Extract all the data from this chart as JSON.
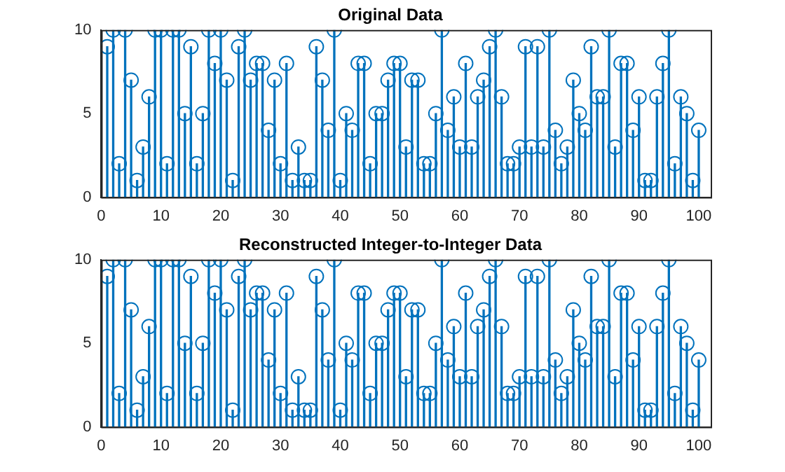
{
  "chart_data": [
    {
      "type": "lollipop",
      "title": "Original Data",
      "marker": "circle",
      "color": "#0072bd",
      "x": [
        1,
        2,
        3,
        4,
        5,
        6,
        7,
        8,
        9,
        10,
        11,
        12,
        13,
        14,
        15,
        16,
        17,
        18,
        19,
        20,
        21,
        22,
        23,
        24,
        25,
        26,
        27,
        28,
        29,
        30,
        31,
        32,
        33,
        34,
        35,
        36,
        37,
        38,
        39,
        40,
        41,
        42,
        43,
        44,
        45,
        46,
        47,
        48,
        49,
        50,
        51,
        52,
        53,
        54,
        55,
        56,
        57,
        58,
        59,
        60,
        61,
        62,
        63,
        64,
        65,
        66,
        67,
        68,
        69,
        70,
        71,
        72,
        73,
        74,
        75,
        76,
        77,
        78,
        79,
        80,
        81,
        82,
        83,
        84,
        85,
        86,
        87,
        88,
        89,
        90,
        91,
        92,
        93,
        94,
        95,
        96,
        97,
        98,
        99,
        100
      ],
      "values": [
        9,
        10,
        2,
        10,
        7,
        1,
        3,
        6,
        10,
        10,
        2,
        10,
        10,
        5,
        9,
        2,
        5,
        10,
        8,
        10,
        7,
        1,
        9,
        10,
        7,
        8,
        8,
        4,
        7,
        2,
        8,
        1,
        3,
        1,
        1,
        9,
        7,
        4,
        10,
        1,
        5,
        4,
        8,
        8,
        2,
        5,
        5,
        7,
        8,
        8,
        3,
        7,
        7,
        2,
        2,
        5,
        10,
        4,
        6,
        3,
        8,
        3,
        6,
        7,
        9,
        10,
        6,
        2,
        2,
        3,
        9,
        3,
        9,
        3,
        10,
        4,
        2,
        3,
        7,
        5,
        4,
        9,
        6,
        6,
        10,
        3,
        8,
        8,
        4,
        6,
        1,
        1,
        6,
        8,
        10,
        2,
        6,
        5,
        1,
        4
      ],
      "xlim": [
        0,
        102
      ],
      "xticks": [
        0,
        10,
        20,
        30,
        40,
        50,
        60,
        70,
        80,
        90,
        100
      ],
      "ylim": [
        0,
        10
      ],
      "yticks": [
        0,
        5,
        10
      ]
    },
    {
      "type": "lollipop",
      "title": "Reconstructed Integer-to-Integer Data",
      "marker": "circle",
      "color": "#0072bd",
      "x": [
        1,
        2,
        3,
        4,
        5,
        6,
        7,
        8,
        9,
        10,
        11,
        12,
        13,
        14,
        15,
        16,
        17,
        18,
        19,
        20,
        21,
        22,
        23,
        24,
        25,
        26,
        27,
        28,
        29,
        30,
        31,
        32,
        33,
        34,
        35,
        36,
        37,
        38,
        39,
        40,
        41,
        42,
        43,
        44,
        45,
        46,
        47,
        48,
        49,
        50,
        51,
        52,
        53,
        54,
        55,
        56,
        57,
        58,
        59,
        60,
        61,
        62,
        63,
        64,
        65,
        66,
        67,
        68,
        69,
        70,
        71,
        72,
        73,
        74,
        75,
        76,
        77,
        78,
        79,
        80,
        81,
        82,
        83,
        84,
        85,
        86,
        87,
        88,
        89,
        90,
        91,
        92,
        93,
        94,
        95,
        96,
        97,
        98,
        99,
        100
      ],
      "values": [
        9,
        10,
        2,
        10,
        7,
        1,
        3,
        6,
        10,
        10,
        2,
        10,
        10,
        5,
        9,
        2,
        5,
        10,
        8,
        10,
        7,
        1,
        9,
        10,
        7,
        8,
        8,
        4,
        7,
        2,
        8,
        1,
        3,
        1,
        1,
        9,
        7,
        4,
        10,
        1,
        5,
        4,
        8,
        8,
        2,
        5,
        5,
        7,
        8,
        8,
        3,
        7,
        7,
        2,
        2,
        5,
        10,
        4,
        6,
        3,
        8,
        3,
        6,
        7,
        9,
        10,
        6,
        2,
        2,
        3,
        9,
        3,
        9,
        3,
        10,
        4,
        2,
        3,
        7,
        5,
        4,
        9,
        6,
        6,
        10,
        3,
        8,
        8,
        4,
        6,
        1,
        1,
        6,
        8,
        10,
        2,
        6,
        5,
        1,
        4
      ],
      "xlim": [
        0,
        102
      ],
      "xticks": [
        0,
        10,
        20,
        30,
        40,
        50,
        60,
        70,
        80,
        90,
        100
      ],
      "ylim": [
        0,
        10
      ],
      "yticks": [
        0,
        5,
        10
      ]
    }
  ]
}
